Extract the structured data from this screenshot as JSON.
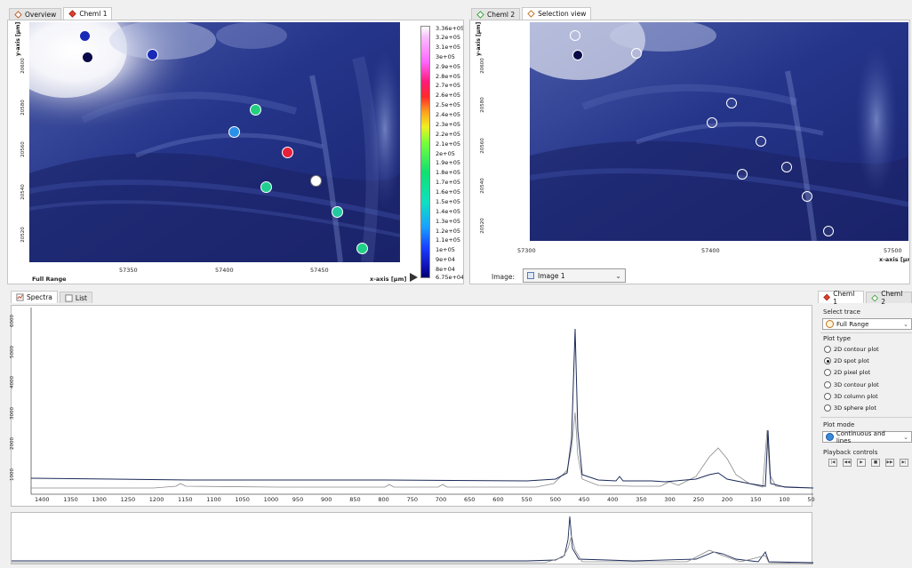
{
  "left_panel": {
    "tabs": [
      {
        "label": "Overview"
      },
      {
        "label": "Cheml 1"
      }
    ],
    "y_axis_label": "y-axis [µm]",
    "x_axis_label": "x-axis [µm]",
    "range_label": "Full Range",
    "x_ticks": [
      "57350",
      "57400",
      "57450"
    ],
    "y_ticks": [
      "20600",
      "20580",
      "20560",
      "20540",
      "20520"
    ]
  },
  "colorbar": {
    "max": "3.36e+05",
    "min": "6.75e+04",
    "labels": [
      "3.2e+05",
      "3.1e+05",
      "3e+05",
      "2.9e+05",
      "2.8e+05",
      "2.7e+05",
      "2.6e+05",
      "2.5e+05",
      "2.4e+05",
      "2.3e+05",
      "2.2e+05",
      "2.1e+05",
      "2e+05",
      "1.9e+05",
      "1.8e+05",
      "1.7e+05",
      "1.6e+05",
      "1.5e+05",
      "1.4e+05",
      "1.3e+05",
      "1.2e+05",
      "1.1e+05",
      "1e+05",
      "9e+04",
      "8e+04"
    ]
  },
  "right_panel": {
    "tabs": [
      {
        "label": "Cheml 2"
      },
      {
        "label": "Selection view"
      }
    ],
    "y_axis_label": "y-axis [µm]",
    "x_axis_label": "x-axis [µm]",
    "x_ticks": [
      "57300",
      "57400",
      "57500"
    ],
    "y_ticks": [
      "20600",
      "20580",
      "20560",
      "20540",
      "20520"
    ],
    "image_label": "Image:",
    "image_value": "Image 1"
  },
  "spectra_panel": {
    "tabs": [
      {
        "label": "Spectra"
      },
      {
        "label": "List"
      }
    ],
    "x_ticks": [
      "1400",
      "1350",
      "1300",
      "1250",
      "1200",
      "1150",
      "1100",
      "1050",
      "1000",
      "950",
      "900",
      "850",
      "800",
      "750",
      "700",
      "650",
      "600",
      "550",
      "500",
      "450",
      "400",
      "350",
      "300",
      "250",
      "200",
      "150",
      "100",
      "50"
    ],
    "y_ticks": [
      "6000",
      "5000",
      "4000",
      "3000",
      "2000",
      "1000"
    ]
  },
  "side_panel": {
    "tabs": [
      {
        "label": "Cheml 1"
      },
      {
        "label": "Cheml 2"
      }
    ],
    "select_trace_label": "Select trace",
    "trace_value": "Full Range",
    "plot_type_label": "Plot type",
    "plot_types": [
      {
        "label": "2D contour plot",
        "selected": false
      },
      {
        "label": "2D spot plot",
        "selected": true
      },
      {
        "label": "2D pixel plot",
        "selected": false
      },
      {
        "label": "3D contour plot",
        "selected": false
      },
      {
        "label": "3D column plot",
        "selected": false
      },
      {
        "label": "3D sphere plot",
        "selected": false
      }
    ],
    "plot_mode_label": "Plot mode",
    "plot_mode_value": "Continuous and lines",
    "playback_label": "Playback controls"
  },
  "spot_colors": [
    "#1a2ab8",
    "#0a0a4a",
    "#1a2ab8",
    "#22d080",
    "#2a90e8",
    "#e8203a",
    "#ffffff",
    "#20d090",
    "#22c8a0",
    "#20d088"
  ],
  "accent_colors": {
    "tab_active": "#ffffff",
    "panel_border": "#c4c4c4",
    "spectrum_dark": "#1c2a5a",
    "spectrum_light": "#8a8a8a"
  }
}
